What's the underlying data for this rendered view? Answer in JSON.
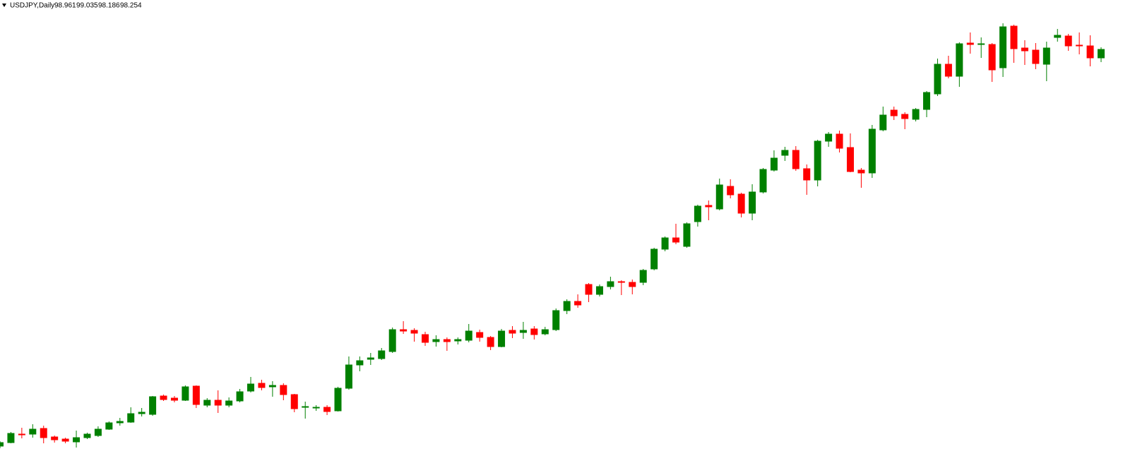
{
  "chart_data": {
    "type": "candlestick",
    "title": "USDJPY,Daily",
    "header_values": [
      98.961,
      99.035,
      98.186,
      98.254
    ],
    "up_color": "#008000",
    "down_color": "#ff0000",
    "open": [
      76.72,
      76.92,
      77.4,
      77.4,
      77.72,
      77.24,
      77.12,
      76.96,
      77.2,
      77.32,
      77.68,
      78.04,
      78.08,
      78.56,
      78.52,
      79.56,
      79.44,
      79.32,
      80.12,
      79.04,
      79.32,
      79.04,
      79.28,
      79.84,
      80.28,
      80.08,
      80.16,
      79.64,
      78.92,
      78.88,
      78.92,
      78.72,
      80.0,
      81.32,
      81.64,
      81.68,
      82.08,
      83.32,
      83.28,
      83.04,
      82.64,
      82.76,
      82.68,
      82.72,
      83.16,
      82.88,
      82.36,
      83.28,
      83.16,
      83.36,
      83.08,
      83.32,
      84.4,
      84.92,
      85.88,
      85.32,
      85.76,
      86.04,
      86.0,
      86.0,
      86.76,
      87.88,
      88.52,
      88.04,
      89.44,
      90.36,
      90.16,
      91.44,
      91.0,
      89.92,
      91.12,
      92.36,
      93.2,
      93.48,
      92.44,
      91.8,
      94.0,
      94.4,
      93.64,
      92.36,
      92.2,
      94.64,
      95.76,
      95.52,
      95.24,
      95.8,
      96.68,
      98.36,
      97.68,
      99.56,
      99.48,
      99.48,
      98.16,
      100.52,
      99.28,
      99.16,
      98.36,
      99.88,
      99.96,
      99.44,
      99.4,
      98.72
    ],
    "high": [
      77.0,
      77.52,
      77.76,
      77.96,
      77.88,
      77.32,
      77.2,
      77.6,
      77.48,
      77.84,
      78.12,
      78.32,
      78.92,
      78.88,
      79.56,
      79.64,
      79.56,
      80.16,
      80.16,
      79.44,
      79.88,
      79.48,
      79.96,
      80.64,
      80.48,
      80.4,
      80.28,
      79.68,
      79.24,
      79.04,
      79.04,
      80.08,
      81.8,
      81.8,
      82.0,
      82.28,
      83.44,
      83.8,
      83.4,
      83.2,
      83.0,
      82.88,
      82.88,
      83.64,
      83.32,
      82.96,
      83.36,
      83.52,
      83.76,
      83.52,
      83.48,
      84.52,
      85.04,
      85.32,
      85.96,
      85.88,
      86.32,
      86.12,
      86.16,
      86.76,
      87.96,
      88.6,
      89.32,
      89.4,
      90.4,
      90.64,
      91.88,
      91.84,
      91.08,
      91.56,
      92.48,
      93.48,
      93.68,
      93.72,
      92.68,
      94.08,
      94.52,
      94.6,
      94.44,
      92.48,
      94.92,
      95.96,
      95.96,
      95.64,
      95.88,
      96.84,
      98.68,
      98.84,
      99.6,
      100.16,
      99.88,
      99.56,
      100.68,
      100.6,
      99.72,
      99.56,
      99.64,
      100.36,
      100.08,
      100.16,
      100.0,
      99.32
    ],
    "low": [
      76.6,
      76.88,
      77.16,
      77.2,
      76.88,
      76.92,
      76.88,
      76.64,
      77.12,
      77.24,
      77.64,
      77.88,
      78.04,
      78.4,
      78.44,
      79.28,
      79.2,
      79.28,
      78.88,
      78.92,
      78.6,
      78.92,
      79.2,
      79.76,
      79.88,
      79.52,
      79.32,
      78.64,
      78.28,
      78.72,
      78.48,
      78.68,
      79.92,
      80.96,
      81.32,
      81.6,
      82.0,
      83.08,
      82.64,
      82.4,
      82.36,
      82.12,
      82.48,
      82.6,
      82.64,
      82.16,
      82.32,
      82.84,
      82.8,
      82.76,
      83.0,
      83.24,
      84.2,
      84.56,
      84.88,
      85.2,
      85.6,
      85.28,
      85.32,
      85.84,
      86.68,
      87.76,
      88.16,
      87.96,
      89.16,
      89.52,
      90.08,
      90.76,
      89.68,
      89.52,
      91.04,
      92.28,
      92.88,
      92.32,
      90.96,
      91.44,
      93.68,
      93.36,
      92.24,
      91.36,
      91.92,
      94.56,
      95.2,
      94.68,
      95.12,
      95.36,
      96.56,
      97.56,
      97.08,
      98.96,
      98.72,
      97.36,
      97.64,
      98.44,
      98.32,
      98.08,
      97.4,
      99.64,
      99.12,
      98.92,
      98.24,
      98.48
    ],
    "close": [
      76.92,
      77.44,
      77.36,
      77.68,
      77.2,
      77.08,
      77.0,
      77.2,
      77.4,
      77.68,
      78.04,
      78.12,
      78.56,
      78.64,
      79.52,
      79.36,
      79.32,
      80.08,
      79.08,
      79.32,
      79.04,
      79.28,
      79.8,
      80.24,
      80.04,
      80.16,
      79.64,
      78.84,
      78.96,
      78.92,
      78.68,
      80.0,
      81.32,
      81.56,
      81.72,
      82.12,
      83.32,
      83.24,
      83.12,
      82.6,
      82.76,
      82.64,
      82.76,
      83.24,
      82.88,
      82.36,
      83.24,
      83.12,
      83.28,
      83.04,
      83.32,
      84.4,
      84.92,
      84.72,
      85.32,
      85.76,
      86.04,
      86.0,
      85.76,
      86.68,
      87.88,
      88.52,
      88.28,
      89.32,
      90.32,
      90.28,
      91.52,
      90.96,
      89.92,
      91.12,
      92.4,
      93.04,
      93.48,
      92.44,
      91.8,
      94.0,
      94.4,
      93.6,
      92.28,
      92.2,
      94.68,
      95.48,
      95.44,
      95.28,
      95.8,
      96.76,
      98.36,
      97.68,
      99.52,
      99.48,
      99.52,
      98.04,
      100.48,
      99.24,
      99.12,
      98.4,
      99.28,
      100.0,
      99.4,
      99.4,
      98.72,
      99.2
    ]
  }
}
